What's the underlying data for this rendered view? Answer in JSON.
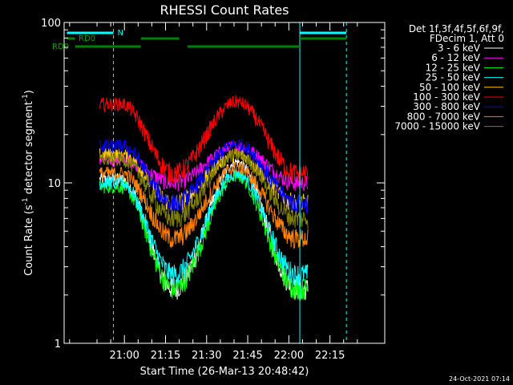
{
  "chart_data": {
    "type": "line",
    "title": "RHESSI Count Rates",
    "xlabel": "Start Time (26-Mar-13 20:48:42)",
    "ylabel_main": "Count Rate (s",
    "ylabel_exp1": "-1",
    "ylabel_mid": " detector segment",
    "ylabel_exp2": "-1",
    "ylabel_end": ")",
    "y_scale": "log",
    "ylim": [
      1,
      100
    ],
    "xlim_min": [
      -7,
      110
    ],
    "y_tick_labels": [
      "1",
      "10",
      "100"
    ],
    "x_ticks_min": [
      15,
      30,
      45,
      60,
      75,
      90
    ],
    "x_tick_labels": [
      "21:00",
      "21:15",
      "21:30",
      "21:45",
      "22:00",
      "22:15"
    ],
    "legend_title_1": "Det 1f,3f,4f,5f,6f,9f,",
    "legend_title_2": "FDecim 1, Att 0",
    "legend_placement": "right",
    "series": [
      {
        "name": "3 - 6 keV",
        "color": "#ffffff",
        "base": 10.5,
        "peak": 13.5,
        "min": 2.2
      },
      {
        "name": "6 - 12 keV",
        "color": "#ff00ff",
        "base": 14,
        "peak": 17,
        "min": 10
      },
      {
        "name": "12 - 25 keV",
        "color": "#00ff00",
        "base": 9.5,
        "peak": 11,
        "min": 2.2
      },
      {
        "name": "25 - 50 keV",
        "color": "#00ffff",
        "base": 10,
        "peak": 11.5,
        "min": 2.7
      },
      {
        "name": "50 - 100 keV",
        "color": "#ffcc00",
        "base": 15,
        "peak": 15,
        "min": 7.5
      },
      {
        "name": "100 - 300 keV",
        "color": "#ff0000",
        "base": 31,
        "peak": 32,
        "min": 11.5
      },
      {
        "name": "300 - 800 keV",
        "color": "#0000ff",
        "base": 17,
        "peak": 17.5,
        "min": 7.5
      },
      {
        "name": "800 - 7000 keV",
        "color": "#ff8000",
        "base": 11.5,
        "peak": 12.5,
        "min": 4.5
      },
      {
        "name": "7000 - 15000 keV",
        "color": "#808000",
        "base": 14,
        "peak": 15,
        "min": 6
      }
    ],
    "time_profile": {
      "data_start_min": 6,
      "data_end_min": 82,
      "dip1_min": 33,
      "peak_min": 56,
      "dip2_min": 78
    },
    "annotations": {
      "N_label": "N",
      "rd0_label_top": "RD0",
      "rd0_label_left": "RD0",
      "cyan_vlines_min": [
        11,
        79,
        96
      ],
      "dashed_vlines_min": [
        11,
        96
      ],
      "solid_vlines_min": [
        79
      ],
      "cyan_bar_segments_min": [
        [
          -6,
          11
        ],
        [
          79,
          96
        ]
      ],
      "green_bar_top_segments_min": [
        [
          -6,
          -3
        ],
        [
          21,
          35
        ],
        [
          79,
          96
        ]
      ],
      "green_bar_low_segments_min": [
        [
          -3,
          21
        ],
        [
          38,
          79
        ]
      ]
    },
    "grid": false
  },
  "timestamp": "24-Oct-2021 07:14",
  "colors": {
    "background": "#000000",
    "axes": "#ffffff",
    "annotation_cyan": "#00ffff",
    "annotation_green": "#008000"
  }
}
